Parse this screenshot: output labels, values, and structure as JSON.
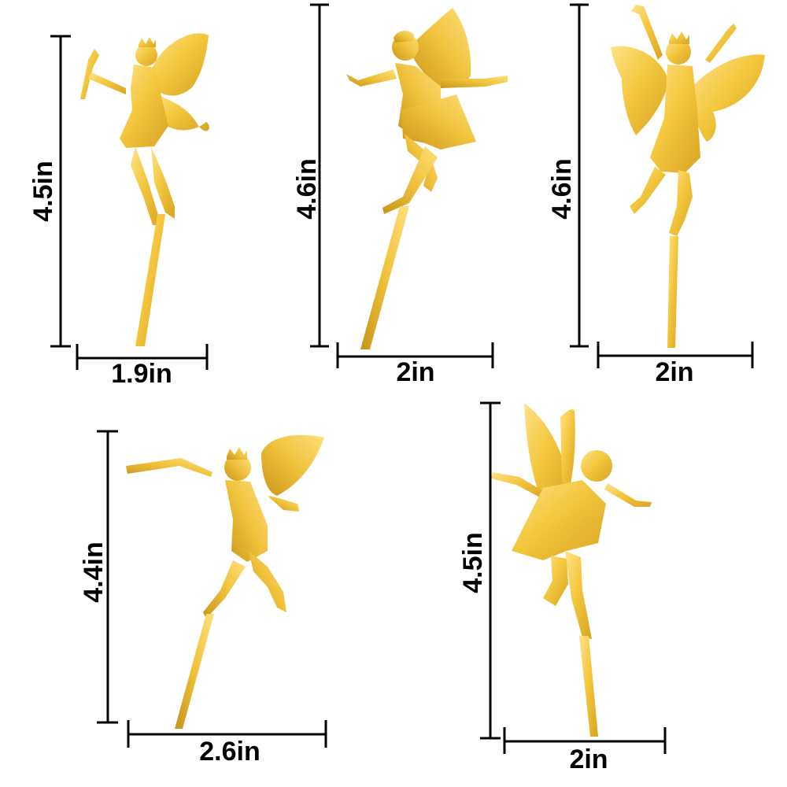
{
  "colors": {
    "gold_light": "#FFE27A",
    "gold_mid": "#F0C43C",
    "gold_dark": "#C9951A",
    "dimension_line": "#000000"
  },
  "toppers": [
    {
      "name": "fairy-with-wand",
      "height_label": "4.5in",
      "width_label": "1.9in"
    },
    {
      "name": "fairy-flying-arms-out",
      "height_label": "4.6in",
      "width_label": "2in"
    },
    {
      "name": "fairy-arms-raised",
      "height_label": "4.6in",
      "width_label": "2in"
    },
    {
      "name": "fairy-flying-wand-forward",
      "height_label": "4.4in",
      "width_label": "2.6in"
    },
    {
      "name": "fairy-dancing",
      "height_label": "4.5in",
      "width_label": "2in"
    }
  ]
}
